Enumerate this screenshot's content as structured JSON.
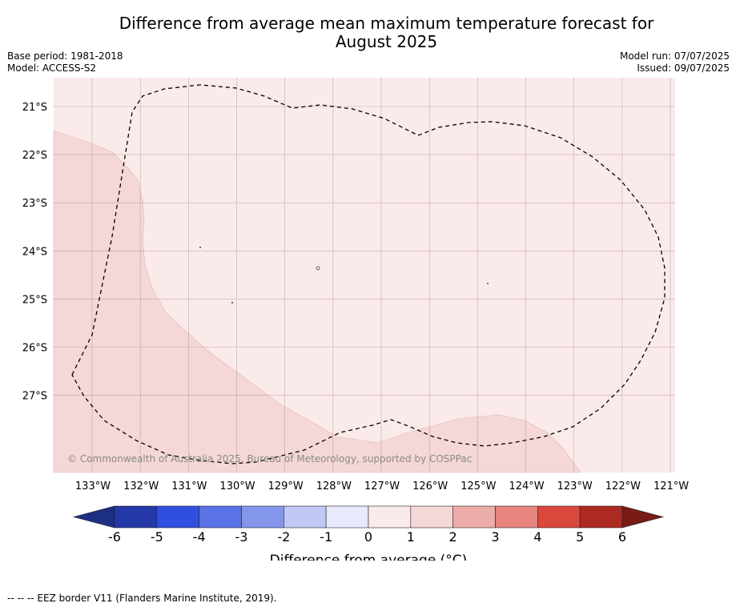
{
  "title": {
    "line1": "Difference from average mean maximum temperature forecast for",
    "line2": "August 2025"
  },
  "meta": {
    "base_period": "Base period: 1981-2018",
    "model": "Model: ACCESS-S2",
    "model_run": "Model run: 07/07/2025",
    "issued": "Issued: 09/07/2025"
  },
  "map": {
    "lat_labels": [
      "21°S",
      "22°S",
      "23°S",
      "24°S",
      "25°S",
      "26°S",
      "27°S"
    ],
    "lon_labels": [
      "133°W",
      "132°W",
      "131°W",
      "130°W",
      "129°W",
      "128°W",
      "127°W",
      "126°W",
      "125°W",
      "124°W",
      "123°W",
      "122°W",
      "121°W"
    ],
    "copyright": "© Commonwealth of Australia 2025, Bureau of Meteorology, supported by COSPPac",
    "regions": [
      {
        "name": "western-region",
        "category": "1 to 2",
        "color": "#f4d7d6"
      },
      {
        "name": "main-region",
        "category": "0 to 1",
        "color": "#fbeaea"
      }
    ]
  },
  "colorbar": {
    "label": "Difference from average (°C)",
    "ticks": [
      "-6",
      "-5",
      "-4",
      "-3",
      "-2",
      "-1",
      "0",
      "1",
      "2",
      "3",
      "4",
      "5",
      "6"
    ],
    "low_extend_color": "#1c2f80",
    "high_extend_color": "#7a1b16",
    "colors": [
      "#2438a8",
      "#2f4fe0",
      "#5a73e6",
      "#8396ec",
      "#c0c8f5",
      "#e8eafb",
      "#fbeaea",
      "#f4d7d6",
      "#ecaca8",
      "#e6847e",
      "#d9473d",
      "#ad2a22"
    ]
  },
  "footer": {
    "legend": "--  --  -- EEZ border V11 (Flanders Marine Institute, 2019)."
  }
}
